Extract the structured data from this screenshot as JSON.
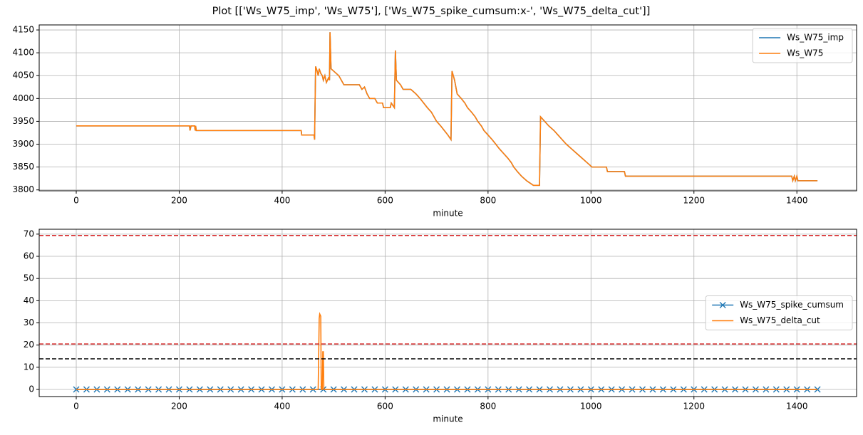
{
  "title": "Plot [['Ws_W75_imp', 'Ws_W75'], ['Ws_W75_spike_cumsum:x-', 'Ws_W75_delta_cut']]",
  "chart_data": [
    {
      "type": "line",
      "xlabel": "minute",
      "xlim": [
        -72,
        1516
      ],
      "ylim": [
        3798,
        4161
      ],
      "xticks": [
        0,
        200,
        400,
        600,
        800,
        1000,
        1200,
        1400
      ],
      "yticks": [
        3800,
        3850,
        3900,
        3950,
        4000,
        4050,
        4100,
        4150
      ],
      "grid": true,
      "legend": "upper right",
      "series": [
        {
          "name": "Ws_W75_imp",
          "color": "#1f77b4",
          "x": [
            0,
            220,
            221,
            223,
            230,
            231,
            232,
            233,
            437,
            438,
            462,
            463,
            465,
            468,
            470,
            472,
            475,
            478,
            480,
            483,
            486,
            490,
            492,
            493,
            495,
            500,
            505,
            510,
            515,
            520,
            550,
            555,
            560,
            565,
            570,
            580,
            585,
            595,
            597,
            610,
            612,
            618,
            620,
            622,
            630,
            635,
            650,
            660,
            668,
            675,
            682,
            690,
            695,
            700,
            708,
            715,
            722,
            728,
            730,
            735,
            740,
            748,
            755,
            760,
            768,
            775,
            780,
            787,
            792,
            800,
            808,
            815,
            822,
            830,
            838,
            845,
            850,
            857,
            865,
            875,
            888,
            900,
            902,
            910,
            918,
            928,
            936,
            944,
            952,
            962,
            972,
            982,
            992,
            1002,
            1030,
            1032,
            1065,
            1067,
            1390,
            1392,
            1395,
            1397,
            1400,
            1402,
            1440
          ],
          "values": [
            3940,
            3940,
            3930,
            3940,
            3940,
            3930,
            3940,
            3930,
            3930,
            3920,
            3920,
            3910,
            4070,
            4060,
            4050,
            4065,
            4055,
            4050,
            4040,
            4050,
            4035,
            4045,
            4040,
            4145,
            4065,
            4060,
            4055,
            4050,
            4040,
            4030,
            4030,
            4020,
            4025,
            4010,
            4000,
            4000,
            3990,
            3990,
            3980,
            3980,
            3990,
            3980,
            4105,
            4040,
            4030,
            4020,
            4020,
            4010,
            4000,
            3990,
            3980,
            3970,
            3960,
            3950,
            3940,
            3930,
            3920,
            3910,
            4060,
            4040,
            4010,
            4000,
            3990,
            3980,
            3970,
            3960,
            3950,
            3940,
            3930,
            3920,
            3910,
            3900,
            3890,
            3880,
            3870,
            3860,
            3850,
            3840,
            3830,
            3820,
            3810,
            3810,
            3960,
            3950,
            3940,
            3930,
            3920,
            3910,
            3900,
            3890,
            3880,
            3870,
            3860,
            3850,
            3850,
            3840,
            3840,
            3830,
            3830,
            3820,
            3830,
            3820,
            3830,
            3820,
            3820
          ]
        },
        {
          "name": "Ws_W75",
          "color": "#ff7f0e",
          "x": [
            0,
            220,
            221,
            223,
            230,
            231,
            232,
            233,
            437,
            438,
            462,
            463,
            465,
            468,
            470,
            472,
            475,
            478,
            480,
            483,
            486,
            490,
            492,
            493,
            495,
            500,
            505,
            510,
            515,
            520,
            550,
            555,
            560,
            565,
            570,
            580,
            585,
            595,
            597,
            610,
            612,
            618,
            620,
            622,
            630,
            635,
            650,
            660,
            668,
            675,
            682,
            690,
            695,
            700,
            708,
            715,
            722,
            728,
            730,
            735,
            740,
            748,
            755,
            760,
            768,
            775,
            780,
            787,
            792,
            800,
            808,
            815,
            822,
            830,
            838,
            845,
            850,
            857,
            865,
            875,
            888,
            900,
            902,
            910,
            918,
            928,
            936,
            944,
            952,
            962,
            972,
            982,
            992,
            1002,
            1030,
            1032,
            1065,
            1067,
            1390,
            1392,
            1395,
            1397,
            1400,
            1402,
            1440
          ],
          "values": [
            3940,
            3940,
            3930,
            3940,
            3940,
            3930,
            3940,
            3930,
            3930,
            3920,
            3920,
            3910,
            4070,
            4060,
            4050,
            4065,
            4055,
            4050,
            4040,
            4050,
            4035,
            4045,
            4040,
            4145,
            4065,
            4060,
            4055,
            4050,
            4040,
            4030,
            4030,
            4020,
            4025,
            4010,
            4000,
            4000,
            3990,
            3990,
            3980,
            3980,
            3990,
            3980,
            4105,
            4040,
            4030,
            4020,
            4020,
            4010,
            4000,
            3990,
            3980,
            3970,
            3960,
            3950,
            3940,
            3930,
            3920,
            3910,
            4060,
            4040,
            4010,
            4000,
            3990,
            3980,
            3970,
            3960,
            3950,
            3940,
            3930,
            3920,
            3910,
            3900,
            3890,
            3880,
            3870,
            3860,
            3850,
            3840,
            3830,
            3820,
            3810,
            3810,
            3960,
            3950,
            3940,
            3930,
            3920,
            3910,
            3900,
            3890,
            3880,
            3870,
            3860,
            3850,
            3850,
            3840,
            3840,
            3830,
            3830,
            3820,
            3830,
            3820,
            3830,
            3820,
            3820
          ]
        }
      ]
    },
    {
      "type": "line",
      "xlabel": "minute",
      "xlim": [
        -72,
        1516
      ],
      "ylim": [
        -3.2,
        72.2
      ],
      "xticks": [
        0,
        200,
        400,
        600,
        800,
        1000,
        1200,
        1400
      ],
      "yticks": [
        0,
        10,
        20,
        30,
        40,
        50,
        60,
        70
      ],
      "grid": true,
      "legend": "center right",
      "hlines": [
        {
          "value": 69.4,
          "color": "#d62728"
        },
        {
          "value": 20.5,
          "color": "#d62728"
        },
        {
          "value": 13.8,
          "color": "#000000"
        }
      ],
      "series": [
        {
          "name": "Ws_W75_spike_cumsum",
          "color": "#1f77b4",
          "marker": "x",
          "x": [
            0,
            20,
            40,
            60,
            80,
            100,
            120,
            140,
            160,
            180,
            200,
            220,
            240,
            260,
            280,
            300,
            320,
            340,
            360,
            380,
            400,
            420,
            440,
            460,
            480,
            500,
            520,
            540,
            560,
            580,
            600,
            620,
            640,
            660,
            680,
            700,
            720,
            740,
            760,
            780,
            800,
            820,
            840,
            860,
            880,
            900,
            920,
            940,
            960,
            980,
            1000,
            1020,
            1040,
            1060,
            1080,
            1100,
            1120,
            1140,
            1160,
            1180,
            1200,
            1220,
            1240,
            1260,
            1280,
            1300,
            1320,
            1340,
            1360,
            1380,
            1400,
            1420,
            1440
          ],
          "values": [
            0,
            0,
            0,
            0,
            0,
            0,
            0,
            0,
            0,
            0,
            0,
            0,
            0,
            0,
            0,
            0,
            0,
            0,
            0,
            0,
            0,
            0,
            0,
            0,
            0,
            0,
            0,
            0,
            0,
            0,
            0,
            0,
            0,
            0,
            0,
            0,
            0,
            0,
            0,
            0,
            0,
            0,
            0,
            0,
            0,
            0,
            0,
            0,
            0,
            0,
            0,
            0,
            0,
            0,
            0,
            0,
            0,
            0,
            0,
            0,
            0,
            0,
            0,
            0,
            0,
            0,
            0,
            0,
            0,
            0,
            0,
            0,
            0
          ]
        },
        {
          "name": "Ws_W75_delta_cut",
          "color": "#ff7f0e",
          "x": [
            0,
            470,
            472,
            473,
            475,
            476,
            478,
            479,
            480,
            481,
            1440
          ],
          "values": [
            0,
            0,
            32,
            34,
            33,
            0,
            0,
            17,
            17,
            0,
            0
          ]
        }
      ]
    }
  ]
}
